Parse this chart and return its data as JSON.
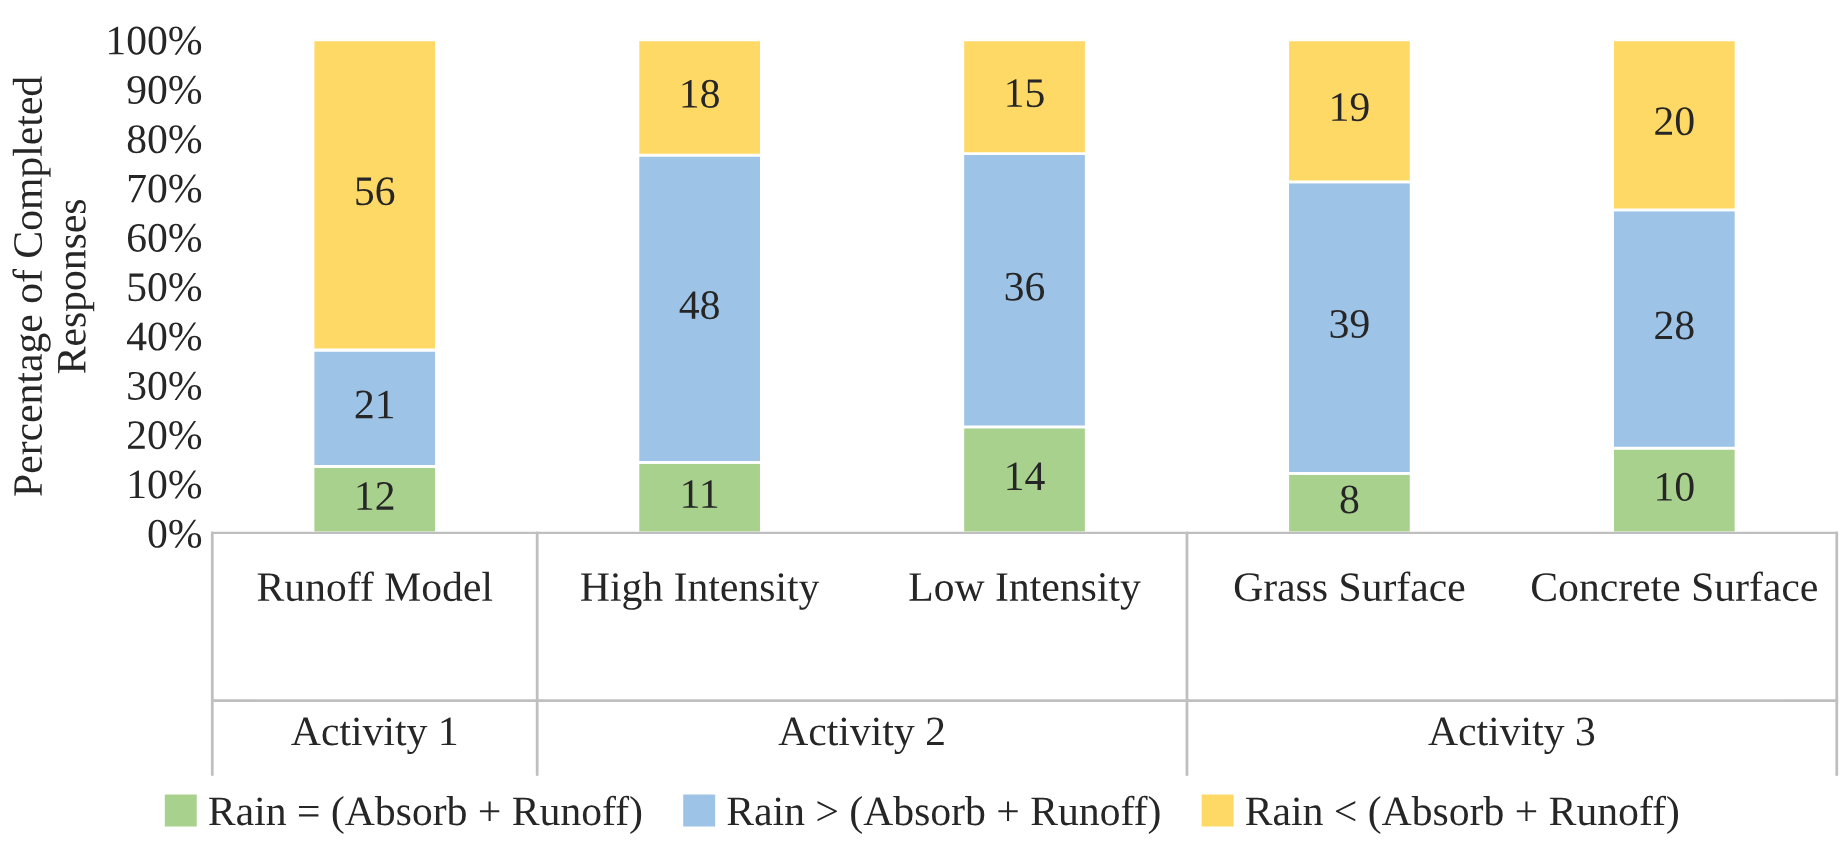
{
  "chart_data": {
    "type": "bar",
    "stacked": true,
    "ylabel": "Percentage of Completed Responses",
    "categories": [
      "Runoff Model",
      "High Intensity",
      "Low Intensity",
      "Grass Surface",
      "Concrete Surface"
    ],
    "series": [
      {
        "name": "Rain = (Absorb + Runoff)",
        "color": "#a9d18e",
        "values": [
          13.5,
          14.3,
          21.5,
          12.1,
          17.2
        ]
      },
      {
        "name": "Rain > (Absorb + Runoff)",
        "color": "#9dc3e6",
        "values": [
          23.6,
          62.3,
          55.4,
          59.1,
          48.3
        ]
      },
      {
        "name": "Rain < (Absorb + Runoff)",
        "color": "#ffd966",
        "values": [
          62.9,
          23.4,
          23.1,
          28.8,
          34.5
        ]
      }
    ],
    "annotations": [
      "Activity 1",
      "Activity 2",
      "Activity 3",
      "12",
      "21",
      "56",
      "11",
      "48",
      "18",
      "14",
      "36",
      "15",
      "8",
      "39",
      "19",
      "10",
      "28",
      "20"
    ],
    "ylim": [
      0,
      100
    ],
    "yticks": [
      {
        "value": 0,
        "label": "0%"
      },
      {
        "value": 10,
        "label": "10%"
      },
      {
        "value": 20,
        "label": "20%"
      },
      {
        "value": 30,
        "label": "30%"
      },
      {
        "value": 40,
        "label": "40%"
      },
      {
        "value": 50,
        "label": "50%"
      },
      {
        "value": 60,
        "label": "60%"
      },
      {
        "value": 70,
        "label": "70%"
      },
      {
        "value": 80,
        "label": "80%"
      },
      {
        "value": 90,
        "label": "90%"
      },
      {
        "value": 100,
        "label": "100%"
      }
    ],
    "grid": false,
    "legend": "bottom"
  }
}
